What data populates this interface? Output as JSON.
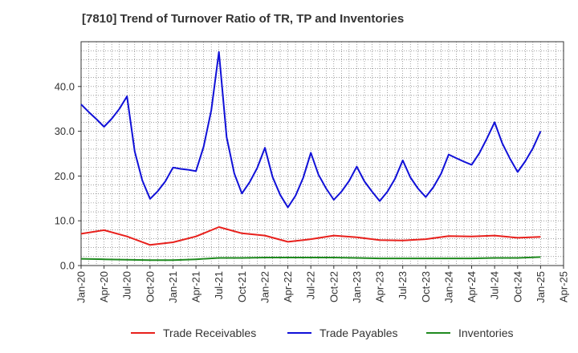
{
  "chart_data": {
    "type": "line",
    "title": "[7810]  Trend of Turnover Ratio of TR, TP and Inventories",
    "xlabel": "",
    "ylabel": "",
    "ylim": [
      0,
      50
    ],
    "yticks": [
      "0.0",
      "10.0",
      "20.0",
      "30.0",
      "40.0"
    ],
    "ytick_values": [
      0,
      10,
      20,
      30,
      40
    ],
    "xticks": [
      "Jan-20",
      "Apr-20",
      "Jul-20",
      "Oct-20",
      "Jan-21",
      "Apr-21",
      "Jul-21",
      "Oct-21",
      "Jan-22",
      "Apr-22",
      "Jul-22",
      "Oct-22",
      "Jan-23",
      "Apr-23",
      "Jul-23",
      "Oct-23",
      "Jan-24",
      "Apr-24",
      "Jul-24",
      "Oct-24",
      "Jan-25",
      "Apr-25"
    ],
    "x_range_months": [
      0,
      63
    ],
    "grid": true,
    "legend_position": "bottom",
    "series": [
      {
        "name": "Trade Receivables",
        "color": "#e8201c",
        "x": [
          0,
          3,
          6,
          9,
          12,
          15,
          18,
          21,
          24,
          27,
          30,
          33,
          36,
          39,
          42,
          45,
          48,
          51,
          54,
          57,
          60
        ],
        "values": [
          7.1,
          7.9,
          6.5,
          4.6,
          5.2,
          6.5,
          8.6,
          7.2,
          6.7,
          5.3,
          5.9,
          6.7,
          6.3,
          5.7,
          5.6,
          5.9,
          6.6,
          6.5,
          6.7,
          6.2,
          6.4
        ]
      },
      {
        "name": "Trade Payables",
        "color": "#1010d8",
        "x": [
          0,
          1,
          2,
          3,
          4,
          5,
          6,
          7,
          8,
          9,
          10,
          11,
          12,
          13,
          14,
          15,
          16,
          17,
          18,
          19,
          20,
          21,
          22,
          23,
          24,
          25,
          26,
          27,
          28,
          29,
          30,
          31,
          32,
          33,
          34,
          35,
          36,
          37,
          38,
          39,
          40,
          41,
          42,
          43,
          44,
          45,
          46,
          47,
          48,
          49,
          50,
          51,
          52,
          53,
          54,
          55,
          56,
          57,
          58,
          59,
          60
        ],
        "values": [
          36.0,
          34.3,
          32.7,
          31.0,
          32.8,
          35.0,
          37.8,
          25.5,
          19.0,
          14.9,
          16.6,
          18.8,
          21.9,
          21.6,
          21.4,
          21.1,
          26.5,
          34.7,
          47.7,
          28.7,
          20.6,
          16.1,
          18.6,
          21.8,
          26.3,
          19.8,
          15.8,
          13.0,
          15.6,
          19.6,
          25.2,
          20.3,
          17.2,
          14.7,
          16.5,
          18.9,
          22.1,
          18.8,
          16.5,
          14.4,
          16.5,
          19.4,
          23.5,
          19.7,
          17.2,
          15.3,
          17.5,
          20.5,
          24.8,
          24.0,
          23.2,
          22.5,
          25.1,
          28.4,
          32.0,
          27.3,
          23.9,
          20.9,
          23.3,
          26.2,
          30.0
        ]
      },
      {
        "name": "Inventories",
        "color": "#1f8a1f",
        "x": [
          0,
          3,
          6,
          9,
          12,
          15,
          18,
          21,
          24,
          27,
          30,
          33,
          36,
          39,
          42,
          45,
          48,
          51,
          54,
          57,
          60
        ],
        "values": [
          1.5,
          1.4,
          1.3,
          1.2,
          1.2,
          1.4,
          1.7,
          1.7,
          1.8,
          1.8,
          1.8,
          1.8,
          1.7,
          1.6,
          1.6,
          1.6,
          1.6,
          1.6,
          1.7,
          1.7,
          1.9
        ]
      }
    ]
  }
}
